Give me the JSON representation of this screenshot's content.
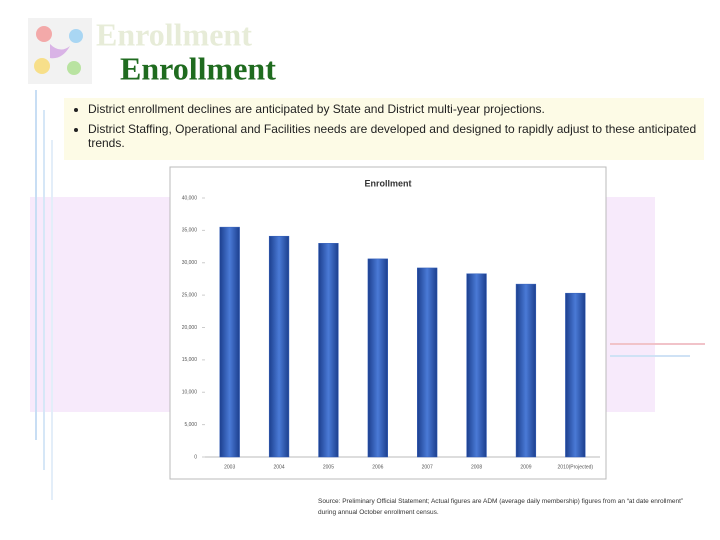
{
  "slide": {
    "title_shadow": "Enrollment",
    "title": "Enrollment",
    "bullets": [
      "District enrollment declines are anticipated by State and District multi-year projections.",
      "District Staffing, Operational and Facilities needs are developed and designed to rapidly adjust to these anticipated trends."
    ],
    "source": "Source: Preliminary Official Statement; Actual figures are ADM (average daily membership) figures from an “at date enrollment” during annual October enrollment census."
  },
  "chart_data": {
    "type": "bar",
    "title": "Enrollment",
    "categories": [
      "2003",
      "2004",
      "2005",
      "2006",
      "2007",
      "2008",
      "2009",
      "2010(Projected)"
    ],
    "values": [
      35500,
      34100,
      33000,
      30600,
      29200,
      28300,
      26700,
      25300
    ],
    "color": "#2f5bb7",
    "ylim": [
      0,
      40000
    ],
    "yticks": [
      0,
      {
        "value": 5000,
        "label": "5,000"
      },
      {
        "value": 10000,
        "label": "10,000"
      },
      {
        "value": 15000,
        "label": "15,000"
      },
      {
        "value": 20000,
        "label": "20,000"
      },
      {
        "value": 25000,
        "label": "25,000"
      },
      {
        "value": 30000,
        "label": "30,000"
      },
      {
        "value": 35000,
        "label": "35,000"
      },
      {
        "value": 40000,
        "label": "40,000"
      }
    ],
    "grid": false
  }
}
